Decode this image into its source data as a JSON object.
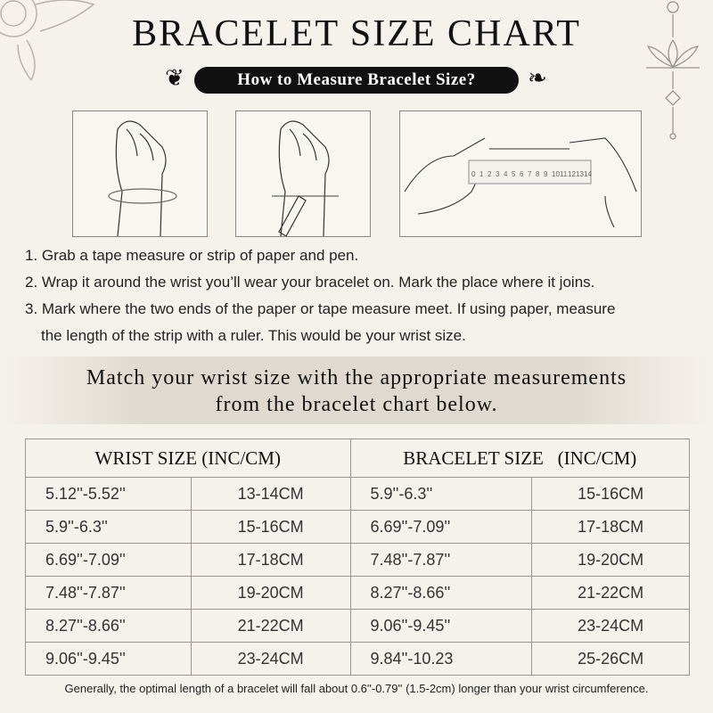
{
  "title": "BRACELET SIZE CHART",
  "subtitle": "How to Measure Bracelet Size?",
  "ruler_labels": [
    "0",
    "1",
    "2",
    "3",
    "4",
    "5",
    "6",
    "7",
    "8",
    "9",
    "10",
    "11",
    "12",
    "13",
    "14"
  ],
  "steps": [
    "1. Grab a tape measure or strip of paper and pen.",
    "2. Wrap it around the wrist you’ll wear your bracelet on. Mark the place where it joins.",
    "3. Mark where the two ends of the paper or tape measure meet. If using paper, measure",
    "the length of the strip with a ruler. This would be your wrist size."
  ],
  "band": {
    "line1": "Match your wrist size with the appropriate measurements",
    "line2": "from the bracelet chart below."
  },
  "table": {
    "headers": [
      "WRIST SIZE (INC/CM)",
      "BRACELET SIZE   (INC/CM)"
    ],
    "rows": [
      [
        "5.12''-5.52''",
        "13-14CM",
        "5.9''-6.3''",
        "15-16CM"
      ],
      [
        "5.9''-6.3''",
        "15-16CM",
        "6.69''-7.09''",
        "17-18CM"
      ],
      [
        "6.69''-7.09''",
        "17-18CM",
        "7.48''-7.87''",
        "19-20CM"
      ],
      [
        "7.48''-7.87''",
        "19-20CM",
        "8.27''-8.66''",
        "21-22CM"
      ],
      [
        "8.27''-8.66''",
        "21-22CM",
        "9.06''-9.45''",
        "23-24CM"
      ],
      [
        "9.06''-9.45''",
        "23-24CM",
        "9.84''-10.23",
        "25-26CM"
      ]
    ]
  },
  "footnote": "Generally, the optimal length of a bracelet will fall about 0.6''-0.79'' (1.5-2cm) longer than your wrist circumference."
}
